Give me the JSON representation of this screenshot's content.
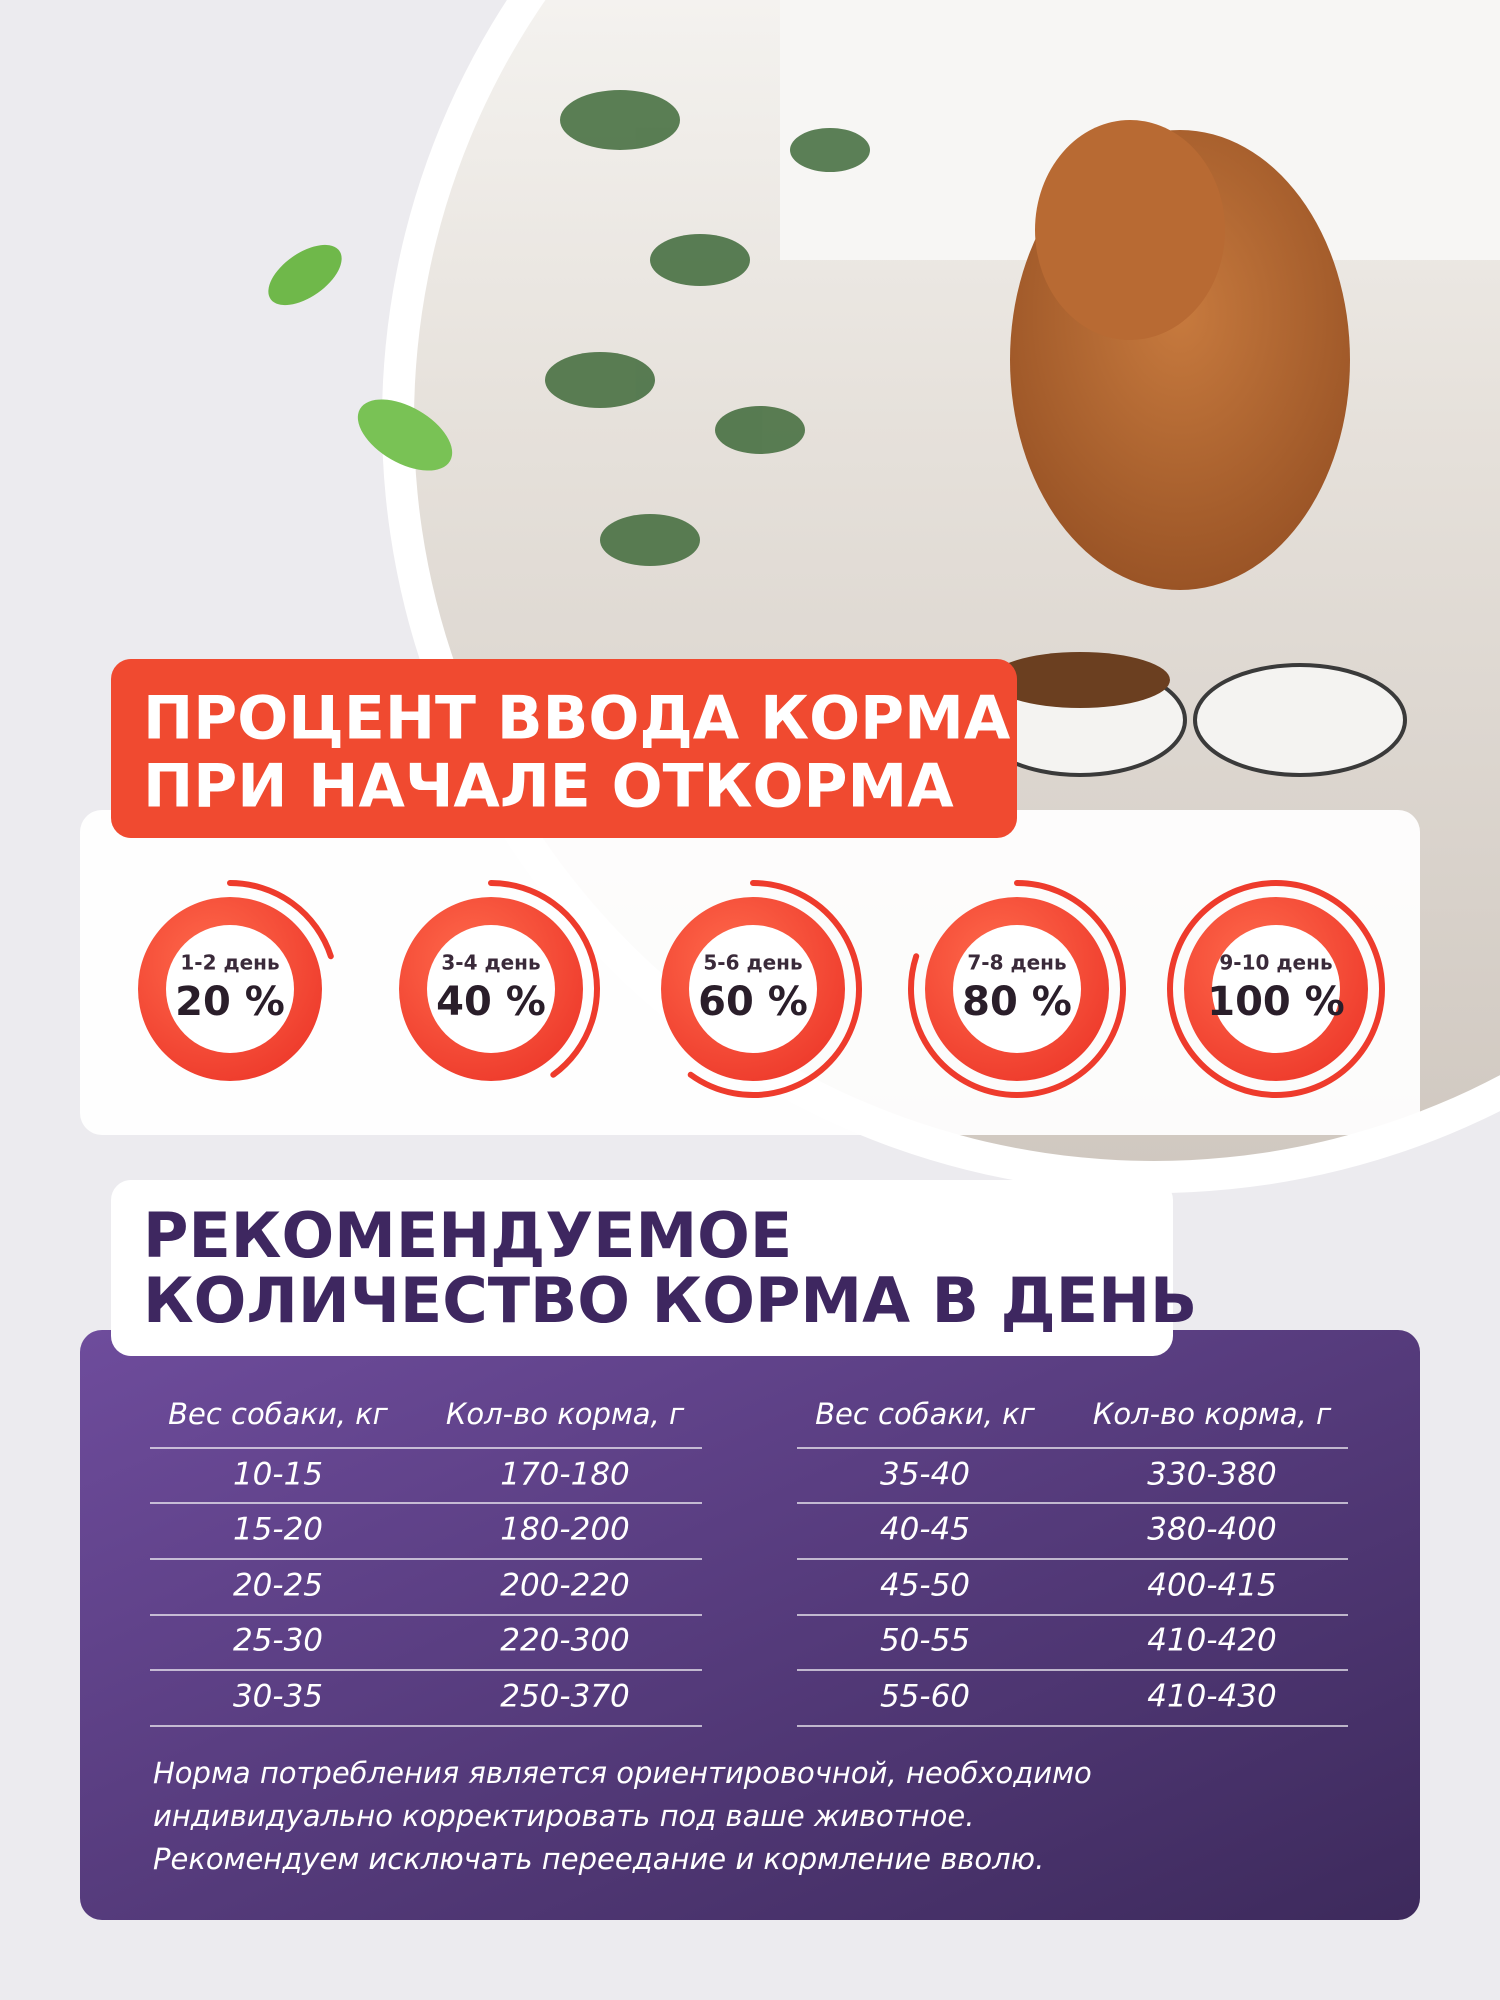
{
  "intro": {
    "title": [
      "ПРОЦЕНТ ВВОДА КОРМА",
      "ПРИ НАЧАЛЕ ОТКОРМА"
    ],
    "stages": [
      {
        "day": "1-2 день",
        "value": 20,
        "label": "20 %"
      },
      {
        "day": "3-4 день",
        "value": 40,
        "label": "40 %"
      },
      {
        "day": "5-6 день",
        "value": 60,
        "label": "60 %"
      },
      {
        "day": "7-8 день",
        "value": 80,
        "label": "80 %"
      },
      {
        "day": "9-10 день",
        "value": 100,
        "label": "100 %"
      }
    ]
  },
  "ration": {
    "title": [
      "РЕКОМЕНДУЕМОЕ",
      "КОЛИЧЕСТВО КОРМА В ДЕНЬ"
    ],
    "tables": [
      {
        "header": [
          "Вес собаки, кг",
          "Кол-во корма, г"
        ],
        "rows": [
          [
            "10-15",
            "170-180"
          ],
          [
            "15-20",
            "180-200"
          ],
          [
            "20-25",
            "200-220"
          ],
          [
            "25-30",
            "220-300"
          ],
          [
            "30-35",
            "250-370"
          ]
        ]
      },
      {
        "header": [
          "Вес собаки, кг",
          "Кол-во корма, г"
        ],
        "rows": [
          [
            "35-40",
            "330-380"
          ],
          [
            "40-45",
            "380-400"
          ],
          [
            "45-50",
            "400-415"
          ],
          [
            "50-55",
            "410-420"
          ],
          [
            "55-60",
            "410-430"
          ]
        ]
      }
    ],
    "note": [
      "Норма потребления является ориентировочной, необходимо",
      "индивидуально корректировать под ваше животное.",
      "Рекомендуем исключать переедание и кормление вволю."
    ]
  }
}
